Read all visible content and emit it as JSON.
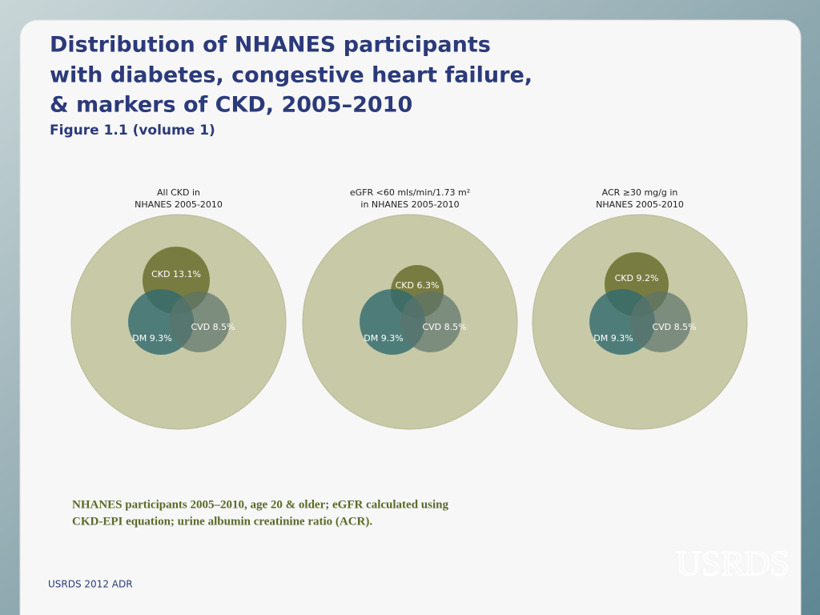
{
  "header": {
    "title": [
      "Distribution of NHANES participants",
      "with diabetes, congestive heart failure,",
      "& markers of CKD, 2005–2010"
    ],
    "subtitle": "Figure 1.1 (volume 1)"
  },
  "panels": [
    {
      "title": [
        "All CKD in",
        "NHANES 2005-2010"
      ],
      "ckd": "CKD 13.1%",
      "dm": "DM 9.3%",
      "cvd": "CVD 8.5%"
    },
    {
      "title": [
        "eGFR <60 mls/min/1.73 m²",
        "in NHANES 2005-2010"
      ],
      "ckd": "CKD 6.3%",
      "dm": "DM 9.3%",
      "cvd": "CVD 8.5%"
    },
    {
      "title": [
        "ACR ≥30 mg/g in",
        "NHANES 2005-2010"
      ],
      "ckd": "CKD 9.2%",
      "dm": "DM 9.3%",
      "cvd": "CVD 8.5%"
    }
  ],
  "note": [
    "NHANES participants 2005–2010, age 20 & older; eGFR calculated using",
    "CKD-EPI equation; urine albumin creatinine ratio (ACR)."
  ],
  "footer": "USRDS 2012 ADR",
  "logo": "USRDS"
}
